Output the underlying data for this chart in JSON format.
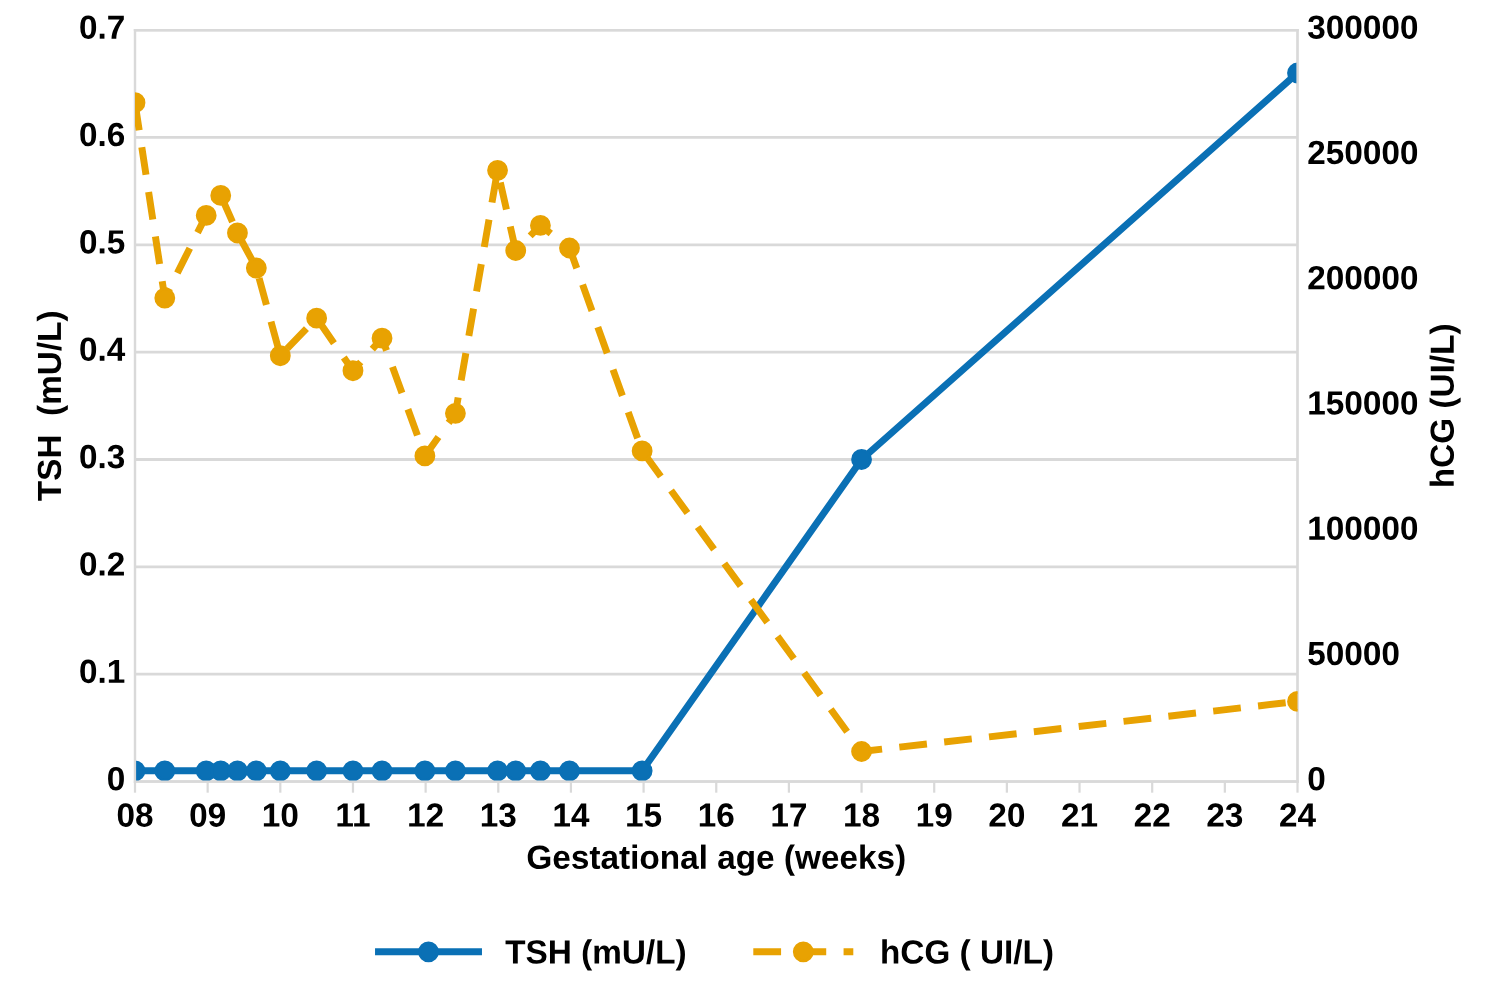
{
  "chart_data": {
    "type": "line",
    "xlabel": "Gestational age (weeks)",
    "ylabel": "TSH  (mU/L)",
    "y2label": "hCG (UI/L)",
    "xlim": [
      8,
      24
    ],
    "xticks": [
      {
        "value": 8,
        "label": "08"
      },
      {
        "value": 9,
        "label": "09"
      },
      10,
      11,
      12,
      13,
      14,
      15,
      16,
      17,
      18,
      19,
      20,
      21,
      22,
      23,
      24
    ],
    "ylim": [
      0,
      0.7
    ],
    "yticks": [
      0,
      0.1,
      0.2,
      0.3,
      0.4,
      0.5,
      0.6,
      0.7
    ],
    "y2lim": [
      0,
      300000
    ],
    "y2ticks": [
      0,
      50000,
      100000,
      150000,
      200000,
      250000,
      300000
    ],
    "x": [
      8.0,
      8.41,
      8.98,
      9.18,
      9.41,
      9.67,
      10.0,
      10.5,
      11.0,
      11.4,
      11.99,
      12.41,
      12.99,
      13.24,
      13.58,
      13.98,
      14.98,
      18,
      24
    ],
    "grid": "y",
    "legend": "bottom",
    "marker": "circle",
    "series": [
      {
        "name": "TSH (mU/L)",
        "color": "#0a70b5",
        "line_style": "solid",
        "values": [
          0.01,
          0.01,
          0.01,
          0.01,
          0.01,
          0.01,
          0.01,
          0.01,
          0.01,
          0.01,
          0.01,
          0.01,
          0.01,
          0.01,
          0.01,
          0.01,
          0.01,
          0.3,
          0.66
        ]
      },
      {
        "name": "hCG ( UI/L)",
        "color": "#e8a202",
        "line_style": "dashed",
        "axis": "y2",
        "values": [
          271000,
          193000,
          226000,
          234000,
          219000,
          205000,
          170000,
          185000,
          164000,
          177000,
          130000,
          147000,
          244000,
          212000,
          222000,
          213000,
          132000,
          12000,
          32000
        ]
      }
    ]
  }
}
